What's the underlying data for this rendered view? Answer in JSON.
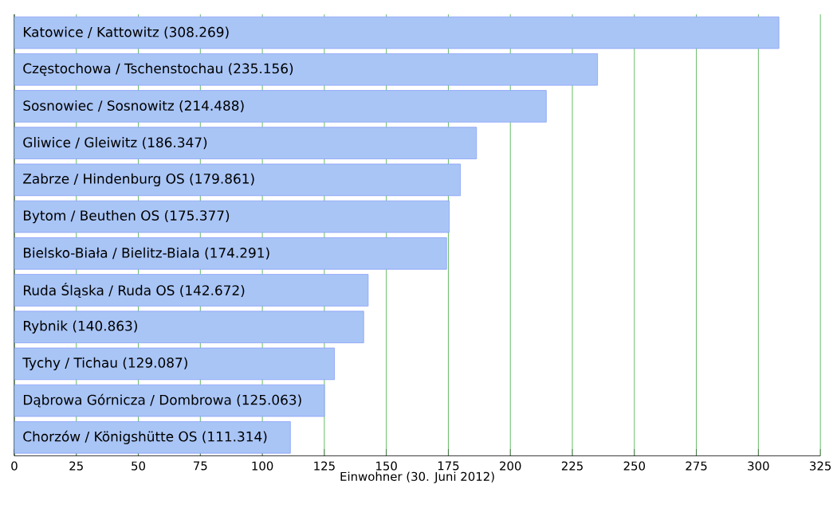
{
  "chart_data": {
    "type": "bar",
    "orientation": "horizontal",
    "xlabel": "Einwohner (30. Juni 2012)",
    "categories": [
      "Katowice / Kattowitz",
      "Częstochowa / Tschenstochau",
      "Sosnowiec / Sosnowitz",
      "Gliwice / Gleiwitz",
      "Zabrze / Hindenburg OS",
      "Bytom / Beuthen OS",
      "Bielsko-Biała / Bielitz-Biala",
      "Ruda Śląska / Ruda OS",
      "Rybnik",
      "Tychy / Tichau",
      "Dąbrowa Górnicza / Dombrowa",
      "Chorzów / Königshütte OS"
    ],
    "values": [
      308.269,
      235.156,
      214.488,
      186.347,
      179.861,
      175.377,
      174.291,
      142.672,
      140.863,
      129.087,
      125.063,
      111.314
    ],
    "value_labels": [
      "(308.269)",
      "(235.156)",
      "(214.488)",
      "(186.347)",
      "(179.861)",
      "(175.377)",
      "(174.291)",
      "(142.672)",
      "(140.863)",
      "(129.087)",
      "(125.063)",
      "(111.314)"
    ],
    "color": "#a9c5f6",
    "xlim": [
      0,
      325
    ],
    "xticks": [
      0,
      25,
      50,
      75,
      100,
      125,
      150,
      175,
      200,
      225,
      250,
      275,
      300,
      325
    ],
    "grid": "x",
    "tick_labels": "x"
  }
}
